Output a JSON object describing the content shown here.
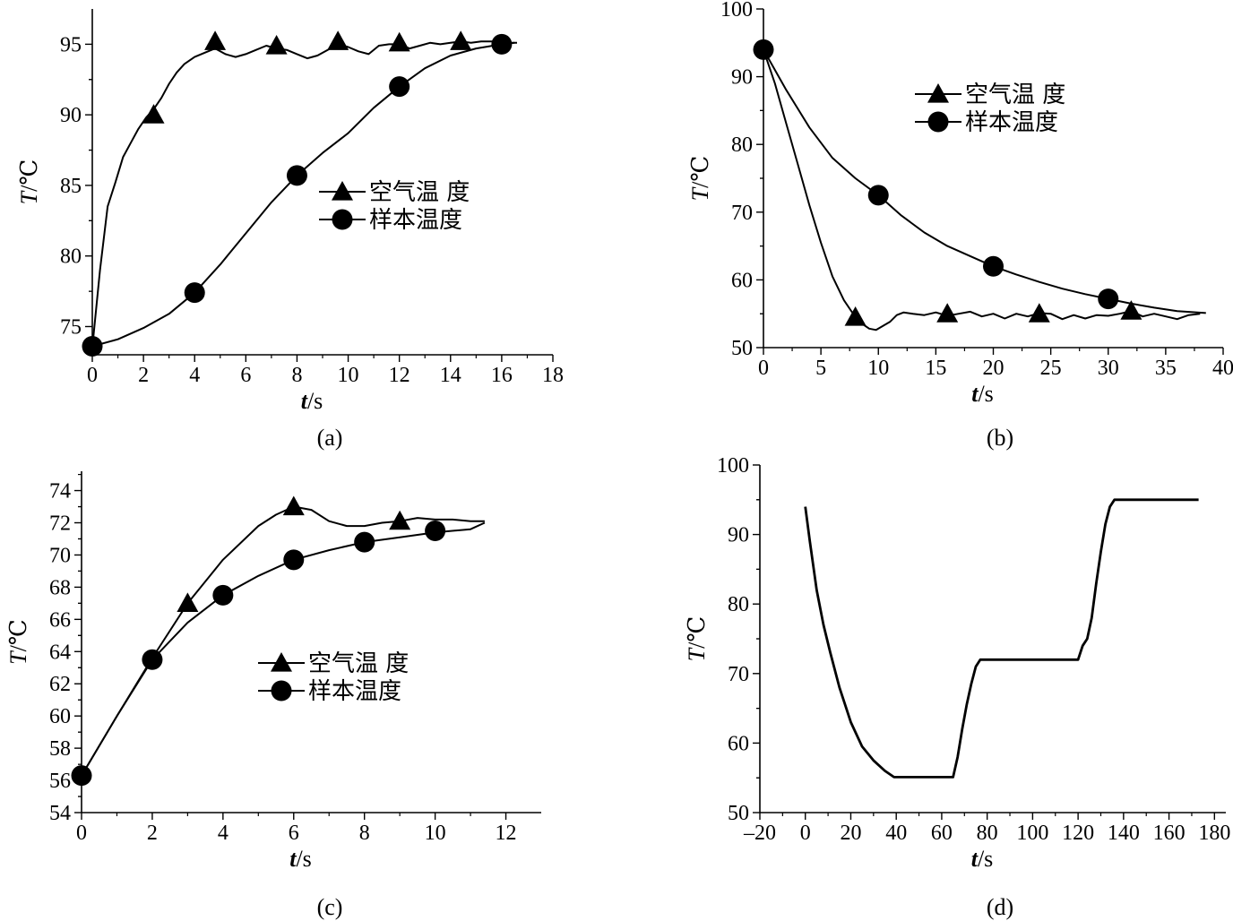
{
  "chart_data": [
    {
      "type": "line",
      "panel": "(a)",
      "xlabel": "t/s",
      "ylabel": "T/℃",
      "xlim": [
        0,
        18
      ],
      "ylim": [
        73,
        97.5
      ],
      "xticks": [
        0,
        2,
        4,
        6,
        8,
        10,
        12,
        14,
        16,
        18
      ],
      "yticks": [
        75,
        80,
        85,
        90,
        95
      ],
      "legend": "center-right",
      "series": [
        {
          "name": "空气温 度",
          "marker": "triangle",
          "x": [
            0,
            0.3,
            0.6,
            0.9,
            1.2,
            1.5,
            1.8,
            2.1,
            2.4,
            2.7,
            3.0,
            3.3,
            3.6,
            4.0,
            4.4,
            4.8,
            5.2,
            5.6,
            6.0,
            6.4,
            6.8,
            7.2,
            7.6,
            8.0,
            8.4,
            8.8,
            9.2,
            9.6,
            10.0,
            10.4,
            10.8,
            11.2,
            11.6,
            12.0,
            12.4,
            12.8,
            13.2,
            13.6,
            14.0,
            14.4,
            14.8,
            15.2,
            15.6,
            16.0,
            16.4,
            16.6
          ],
          "y": [
            73.5,
            79,
            83.5,
            85.2,
            87,
            88,
            89,
            89.8,
            90.4,
            91.2,
            92.2,
            93,
            93.6,
            94.1,
            94.4,
            94.7,
            94.3,
            94.1,
            94.3,
            94.6,
            94.9,
            94.7,
            94.6,
            94.3,
            94.0,
            94.2,
            94.6,
            95.0,
            94.8,
            94.5,
            94.3,
            94.9,
            95.0,
            95.0,
            94.7,
            94.9,
            95.1,
            95.0,
            95.1,
            95.2,
            95.1,
            95.2,
            95.2,
            95.1,
            95.1,
            95.1
          ],
          "marker_x": [
            2.4,
            4.8,
            7.2,
            9.6,
            12.0,
            14.4
          ],
          "marker_y": [
            90,
            95.2,
            94.9,
            95.2,
            95.1,
            95.2
          ]
        },
        {
          "name": "样本温度",
          "marker": "circle",
          "x": [
            0,
            1,
            2,
            3,
            4,
            5,
            6,
            7,
            8,
            9,
            10,
            11,
            12,
            13,
            14,
            15,
            16,
            16.5
          ],
          "y": [
            73.6,
            74.1,
            74.9,
            75.9,
            77.4,
            79.4,
            81.6,
            83.8,
            85.7,
            87.3,
            88.7,
            90.5,
            92.0,
            93.3,
            94.2,
            94.7,
            95.0,
            95.1
          ],
          "marker_x": [
            0,
            4,
            8,
            12,
            16
          ],
          "marker_y": [
            73.6,
            77.4,
            85.7,
            92.0,
            95.0
          ]
        }
      ]
    },
    {
      "type": "line",
      "panel": "(b)",
      "xlabel": "t/s",
      "ylabel": "T/℃",
      "xlim": [
        0,
        40
      ],
      "ylim": [
        50,
        100
      ],
      "xticks": [
        0,
        5,
        10,
        15,
        20,
        25,
        30,
        35,
        40
      ],
      "yticks": [
        50,
        60,
        70,
        80,
        90,
        100
      ],
      "legend": "top-right",
      "series": [
        {
          "name": "空气温 度",
          "marker": "triangle",
          "x": [
            0,
            1,
            2,
            3,
            4,
            5,
            6,
            7,
            8,
            8.6,
            9.2,
            9.8,
            10.4,
            11,
            11.6,
            12.2,
            13,
            14,
            15,
            16,
            17,
            18,
            19,
            20,
            21,
            22,
            23,
            24,
            25,
            26,
            27,
            28,
            29,
            30,
            31,
            32,
            33,
            34,
            35,
            36,
            37,
            38
          ],
          "y": [
            94.0,
            89.0,
            83.0,
            77.0,
            71.0,
            65.5,
            60.5,
            57.0,
            54.5,
            53.5,
            52.8,
            52.6,
            53.2,
            53.8,
            54.8,
            55.2,
            55.0,
            54.8,
            55.2,
            54.7,
            55.0,
            55.3,
            54.6,
            55.0,
            54.3,
            55.0,
            54.6,
            55.1,
            55.0,
            54.2,
            54.8,
            54.3,
            54.8,
            54.7,
            55.0,
            55.4,
            54.6,
            55.0,
            54.6,
            54.2,
            54.8,
            55.0
          ],
          "marker_x": [
            8,
            16,
            24,
            32
          ],
          "marker_y": [
            54.5,
            55.0,
            55.0,
            55.4
          ]
        },
        {
          "name": "样本温度",
          "marker": "circle",
          "x": [
            0,
            2,
            4,
            6,
            8,
            10,
            12,
            14,
            16,
            18,
            20,
            22,
            24,
            26,
            28,
            30,
            32,
            34,
            36,
            38.5
          ],
          "y": [
            94.0,
            88.0,
            82.5,
            78.0,
            75.0,
            72.5,
            69.5,
            67.0,
            65.0,
            63.5,
            62.0,
            60.8,
            59.7,
            58.7,
            57.9,
            57.2,
            56.5,
            55.9,
            55.4,
            55.1
          ],
          "marker_x": [
            0,
            10,
            20,
            30
          ],
          "marker_y": [
            94.0,
            72.5,
            62.0,
            57.2
          ]
        }
      ]
    },
    {
      "type": "line",
      "panel": "(c)",
      "xlabel": "t/s",
      "ylabel": "T/℃",
      "xlim": [
        0,
        13
      ],
      "ylim": [
        54,
        75.2
      ],
      "xticks": [
        0,
        2,
        4,
        6,
        8,
        10,
        12
      ],
      "yticks": [
        54,
        56,
        58,
        60,
        62,
        64,
        66,
        68,
        70,
        72,
        74
      ],
      "legend": "center",
      "series": [
        {
          "name": "空气温 度",
          "marker": "triangle",
          "x": [
            0,
            1,
            2,
            3,
            4,
            5,
            5.5,
            6,
            6.5,
            7,
            7.5,
            8,
            8.5,
            9,
            9.5,
            10,
            10.5,
            11,
            11.4
          ],
          "y": [
            56.3,
            60.0,
            63.6,
            67.0,
            69.7,
            71.8,
            72.5,
            73.0,
            72.8,
            72.1,
            71.8,
            71.8,
            72.0,
            72.1,
            72.3,
            72.2,
            72.2,
            72.1,
            72.1
          ],
          "marker_x": [
            3,
            6,
            9
          ],
          "marker_y": [
            67.0,
            73.0,
            72.1
          ]
        },
        {
          "name": "样本温度",
          "marker": "circle",
          "x": [
            0,
            1,
            2,
            3,
            4,
            5,
            6,
            7,
            8,
            9,
            10,
            11,
            11.4
          ],
          "y": [
            56.3,
            60.0,
            63.5,
            65.8,
            67.5,
            68.7,
            69.7,
            70.3,
            70.8,
            71.1,
            71.4,
            71.6,
            72.0
          ],
          "marker_x": [
            0,
            2,
            4,
            6,
            8,
            10
          ],
          "marker_y": [
            56.3,
            63.5,
            67.5,
            69.7,
            70.8,
            71.5
          ]
        }
      ]
    },
    {
      "type": "line",
      "panel": "(d)",
      "xlabel": "t/s",
      "ylabel": "T/℃",
      "xlim": [
        -20,
        185
      ],
      "ylim": [
        50,
        100
      ],
      "xticks": [
        -20,
        0,
        20,
        40,
        60,
        80,
        100,
        120,
        140,
        160,
        180
      ],
      "yticks": [
        50,
        60,
        70,
        80,
        90,
        100
      ],
      "legend": "none",
      "series": [
        {
          "name": "",
          "x": [
            0,
            2,
            5,
            8,
            11,
            15,
            20,
            25,
            30,
            35,
            39,
            45,
            55,
            65,
            67,
            69,
            71,
            73,
            75,
            77,
            80,
            90,
            100,
            110,
            120,
            122,
            124,
            126,
            128,
            130,
            132,
            134,
            136,
            140,
            150,
            160,
            170,
            173
          ],
          "y": [
            94,
            89,
            82,
            77,
            73,
            68,
            63,
            59.5,
            57.5,
            56,
            55.1,
            55.1,
            55.1,
            55.1,
            58,
            62,
            65.5,
            68.5,
            71,
            72,
            72,
            72,
            72,
            72,
            72,
            74,
            75,
            78,
            83,
            87.5,
            91.5,
            94,
            95,
            95,
            95,
            95,
            95,
            95
          ]
        }
      ]
    }
  ],
  "panel_captions": {
    "a": "(a)",
    "b": "(b)",
    "c": "(c)",
    "d": "(d)"
  },
  "legend": {
    "air": "空气温 度",
    "sample": "样本温度"
  },
  "axis_labels": {
    "x_italic": "t",
    "x_unit": "/s",
    "y_italic": "T",
    "y_unit": "/℃"
  }
}
